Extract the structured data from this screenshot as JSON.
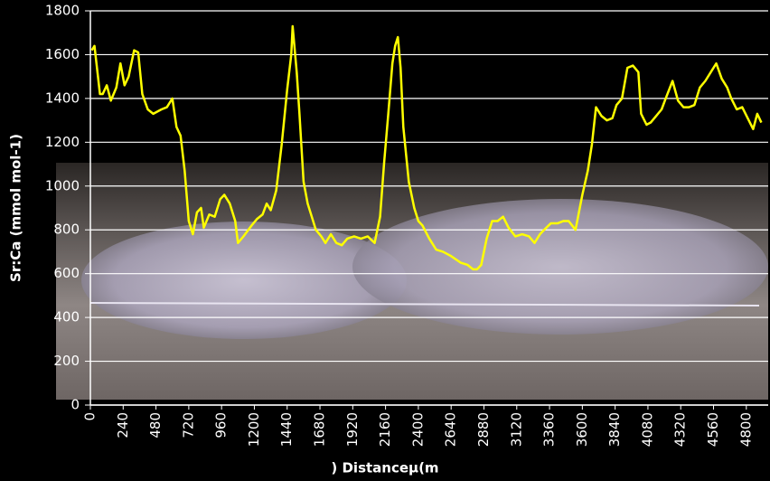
{
  "chart_data": {
    "type": "line",
    "x_label": ") Distanceμ(m",
    "y_label": "Sr:Ca (mmol mol-1)",
    "x": [
      10,
      30,
      70,
      90,
      120,
      150,
      190,
      220,
      250,
      280,
      320,
      350,
      380,
      420,
      460,
      520,
      560,
      600,
      630,
      660,
      690,
      720,
      750,
      780,
      810,
      830,
      870,
      910,
      950,
      980,
      1020,
      1060,
      1080,
      1120,
      1180,
      1220,
      1260,
      1290,
      1320,
      1360,
      1400,
      1440,
      1470,
      1480,
      1510,
      1530,
      1560,
      1590,
      1620,
      1650,
      1690,
      1720,
      1760,
      1800,
      1840,
      1880,
      1930,
      1980,
      2030,
      2080,
      2120,
      2150,
      2180,
      2210,
      2230,
      2250,
      2270,
      2290,
      2330,
      2370,
      2400,
      2430,
      2480,
      2530,
      2580,
      2640,
      2710,
      2760,
      2800,
      2830,
      2860,
      2900,
      2940,
      2980,
      3020,
      3060,
      3110,
      3160,
      3210,
      3250,
      3290,
      3320,
      3370,
      3420,
      3460,
      3500,
      3550,
      3600,
      3640,
      3670,
      3700,
      3740,
      3780,
      3820,
      3850,
      3890,
      3930,
      3970,
      4010,
      4030,
      4070,
      4100,
      4140,
      4180,
      4210,
      4260,
      4300,
      4340,
      4380,
      4420,
      4460,
      4500,
      4540,
      4580,
      4620,
      4660,
      4690,
      4730,
      4770,
      4810,
      4850,
      4880,
      4910
    ],
    "series": [
      {
        "color": "#ffff00",
        "values": [
          1620,
          1640,
          1420,
          1420,
          1460,
          1390,
          1450,
          1560,
          1460,
          1500,
          1620,
          1610,
          1420,
          1350,
          1330,
          1350,
          1360,
          1400,
          1270,
          1230,
          1070,
          840,
          780,
          880,
          900,
          810,
          870,
          860,
          940,
          960,
          920,
          840,
          740,
          770,
          820,
          850,
          870,
          920,
          890,
          980,
          1190,
          1440,
          1600,
          1730,
          1520,
          1330,
          1020,
          920,
          860,
          800,
          770,
          740,
          780,
          740,
          730,
          760,
          770,
          760,
          770,
          740,
          860,
          1110,
          1330,
          1560,
          1640,
          1680,
          1540,
          1270,
          1020,
          900,
          840,
          820,
          760,
          710,
          700,
          680,
          650,
          640,
          620,
          620,
          640,
          760,
          840,
          840,
          860,
          810,
          770,
          780,
          770,
          740,
          780,
          800,
          830,
          830,
          840,
          840,
          800,
          960,
          1070,
          1190,
          1360,
          1320,
          1300,
          1310,
          1370,
          1400,
          1540,
          1550,
          1520,
          1330,
          1280,
          1290,
          1320,
          1350,
          1400,
          1480,
          1390,
          1360,
          1360,
          1370,
          1450,
          1480,
          1520,
          1560,
          1490,
          1450,
          1400,
          1350,
          1360,
          1310,
          1260,
          1330,
          1290
        ]
      }
    ],
    "xlim": [
      0,
      4960
    ],
    "xticks": [
      0,
      240,
      480,
      720,
      960,
      1200,
      1440,
      1680,
      1920,
      2160,
      2400,
      2640,
      2880,
      3120,
      3360,
      3600,
      3840,
      4080,
      4320,
      4560,
      4800
    ],
    "ylim": [
      0,
      1800
    ],
    "yticks": [
      0,
      200,
      400,
      600,
      800,
      1000,
      1200,
      1400,
      1600,
      1800
    ],
    "grid": true
  }
}
